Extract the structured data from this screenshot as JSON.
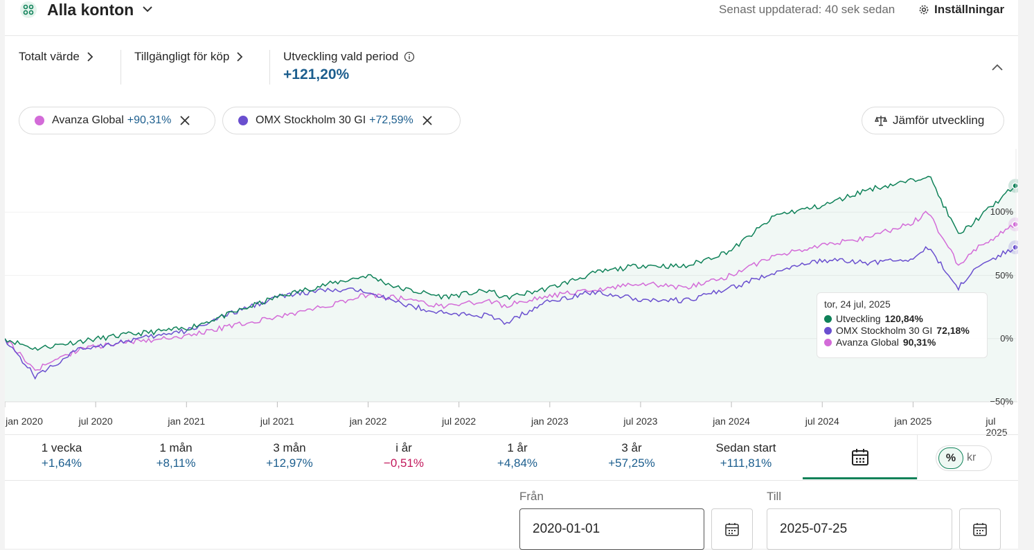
{
  "header": {
    "title": "Alla konton",
    "updated": "Senast uppdaterad: 40 sek sedan",
    "settings_label": "Inställningar"
  },
  "summary": {
    "total_label": "Totalt värde",
    "available_label": "Tillgängligt för köp",
    "period_label": "Utveckling vald period",
    "period_value": "+121,20%"
  },
  "chips": [
    {
      "name": "Avanza Global",
      "value": "+90,31%",
      "color": "#d36bd8"
    },
    {
      "name": "OMX Stockholm 30 GI",
      "value": "+72,59%",
      "color": "#6a4fcf"
    }
  ],
  "compare_label": "Jämför utveckling",
  "colors": {
    "accent": "#0e8158",
    "series_avanza": "#d36bd8",
    "series_omx": "#6a4fcf",
    "positive": "#1c5e8e",
    "negative": "#c2185b"
  },
  "chart_data": {
    "type": "line",
    "x_ticks": [
      "jan 2020",
      "jul 2020",
      "jan 2021",
      "jul 2021",
      "jan 2022",
      "jul 2022",
      "jan 2023",
      "jul 2023",
      "jan 2024",
      "jul 2024",
      "jan 2025",
      "jul 2025"
    ],
    "y_ticks": [
      "100%",
      "50%",
      "0%",
      "−50%"
    ],
    "ylim": [
      -50,
      150
    ],
    "series": [
      {
        "name": "Utveckling",
        "color": "#0e8158",
        "points": [
          [
            "2020-01",
            0
          ],
          [
            "2020-03",
            -8
          ],
          [
            "2020-06",
            -2
          ],
          [
            "2020-09",
            3
          ],
          [
            "2021-01",
            8
          ],
          [
            "2021-04",
            20
          ],
          [
            "2021-07",
            33
          ],
          [
            "2021-10",
            42
          ],
          [
            "2022-01",
            50
          ],
          [
            "2022-03",
            40
          ],
          [
            "2022-06",
            33
          ],
          [
            "2022-09",
            38
          ],
          [
            "2022-10",
            32
          ],
          [
            "2023-01",
            40
          ],
          [
            "2023-04",
            52
          ],
          [
            "2023-07",
            58
          ],
          [
            "2023-10",
            57
          ],
          [
            "2024-01",
            70
          ],
          [
            "2024-04",
            98
          ],
          [
            "2024-07",
            105
          ],
          [
            "2024-10",
            118
          ],
          [
            "2025-01",
            125
          ],
          [
            "2025-02",
            130
          ],
          [
            "2025-04",
            82
          ],
          [
            "2025-05",
            92
          ],
          [
            "2025-07-24",
            120.84
          ]
        ]
      },
      {
        "name": "OMX Stockholm 30 GI",
        "color": "#6a4fcf",
        "points": [
          [
            "2020-01",
            0
          ],
          [
            "2020-03",
            -30
          ],
          [
            "2020-06",
            -8
          ],
          [
            "2020-09",
            -2
          ],
          [
            "2021-01",
            6
          ],
          [
            "2021-04",
            20
          ],
          [
            "2021-07",
            33
          ],
          [
            "2021-10",
            38
          ],
          [
            "2022-01",
            38
          ],
          [
            "2022-03",
            28
          ],
          [
            "2022-06",
            20
          ],
          [
            "2022-09",
            18
          ],
          [
            "2022-10",
            12
          ],
          [
            "2023-01",
            30
          ],
          [
            "2023-04",
            37
          ],
          [
            "2023-07",
            31
          ],
          [
            "2023-10",
            30
          ],
          [
            "2024-01",
            40
          ],
          [
            "2024-04",
            53
          ],
          [
            "2024-07",
            62
          ],
          [
            "2024-10",
            60
          ],
          [
            "2025-01",
            63
          ],
          [
            "2025-02",
            72
          ],
          [
            "2025-04",
            40
          ],
          [
            "2025-05",
            55
          ],
          [
            "2025-07-24",
            72.18
          ]
        ]
      },
      {
        "name": "Avanza Global",
        "color": "#d36bd8",
        "points": [
          [
            "2020-01",
            0
          ],
          [
            "2020-03",
            -25
          ],
          [
            "2020-06",
            -8
          ],
          [
            "2020-09",
            -3
          ],
          [
            "2021-01",
            2
          ],
          [
            "2021-04",
            10
          ],
          [
            "2021-07",
            17
          ],
          [
            "2021-10",
            25
          ],
          [
            "2022-01",
            35
          ],
          [
            "2022-03",
            32
          ],
          [
            "2022-06",
            25
          ],
          [
            "2022-09",
            30
          ],
          [
            "2022-10",
            26
          ],
          [
            "2023-01",
            34
          ],
          [
            "2023-04",
            38
          ],
          [
            "2023-07",
            44
          ],
          [
            "2023-10",
            40
          ],
          [
            "2024-01",
            50
          ],
          [
            "2024-04",
            66
          ],
          [
            "2024-07",
            74
          ],
          [
            "2024-10",
            80
          ],
          [
            "2025-01",
            92
          ],
          [
            "2025-02",
            100
          ],
          [
            "2025-04",
            58
          ],
          [
            "2025-05",
            70
          ],
          [
            "2025-07-24",
            90.31
          ]
        ]
      }
    ]
  },
  "tooltip": {
    "date": "tor, 24 jul, 2025",
    "rows": [
      {
        "label": "Utveckling",
        "value": "120,84%",
        "color": "#0e8158"
      },
      {
        "label": "OMX Stockholm 30 GI",
        "value": "72,18%",
        "color": "#6a4fcf"
      },
      {
        "label": "Avanza Global",
        "value": "90,31%",
        "color": "#d36bd8"
      }
    ]
  },
  "periods": [
    {
      "label": "1 vecka",
      "value": "+1,64%",
      "sign": "pos"
    },
    {
      "label": "1 mån",
      "value": "+8,11%",
      "sign": "pos"
    },
    {
      "label": "3 mån",
      "value": "+12,97%",
      "sign": "pos"
    },
    {
      "label": "i år",
      "value": "−0,51%",
      "sign": "neg"
    },
    {
      "label": "1 år",
      "value": "+4,84%",
      "sign": "pos"
    },
    {
      "label": "3 år",
      "value": "+57,25%",
      "sign": "pos"
    },
    {
      "label": "Sedan start",
      "value": "+111,81%",
      "sign": "pos"
    }
  ],
  "toggle": {
    "percent": "%",
    "currency": "kr"
  },
  "dates": {
    "from_label": "Från",
    "from_value": "2020-01-01",
    "to_label": "Till",
    "to_value": "2025-07-25"
  }
}
